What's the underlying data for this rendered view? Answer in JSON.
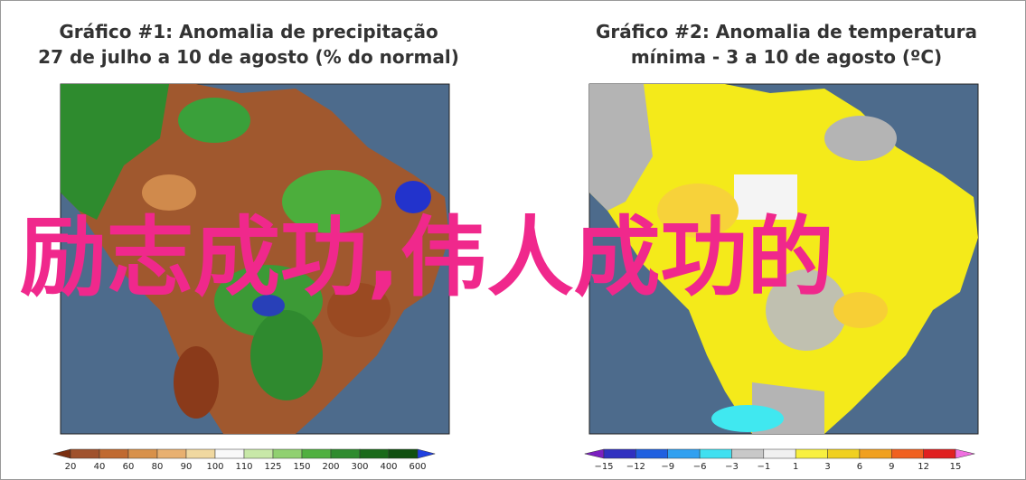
{
  "panels": [
    {
      "title_line1": "Gráfico #1: Anomalia de precipitação",
      "title_line2": "27 de julho a 10 de agosto (% do normal)",
      "colorbar_labels": [
        "20",
        "40",
        "60",
        "80",
        "90",
        "100",
        "110",
        "125",
        "150",
        "200",
        "300",
        "400",
        "600"
      ]
    },
    {
      "title_line1": "Gráfico #2: Anomalia de temperatura",
      "title_line2": "mínima - 3 a 10 de agosto (ºC)",
      "colorbar_labels": [
        "−15",
        "−12",
        "−9",
        "−6",
        "−3",
        "−1",
        "1",
        "3",
        "6",
        "9",
        "12",
        "15"
      ]
    }
  ],
  "overlay_text": "励志成功,伟人成功的"
}
